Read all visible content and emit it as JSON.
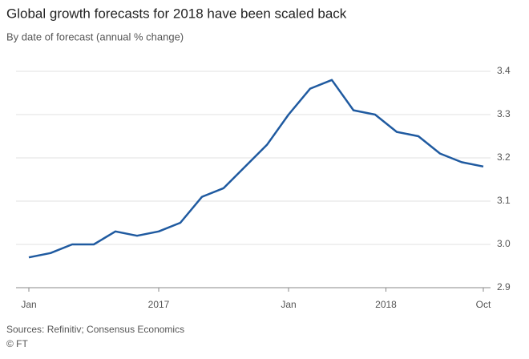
{
  "chart_data": {
    "type": "line",
    "title": "Global growth forecasts for 2018 have been scaled back",
    "subtitle": "By date of forecast (annual % change)",
    "source": "Sources: Refinitiv; Consensus Economics",
    "credit": "© FT",
    "categories": [
      "Jan",
      null,
      null,
      null,
      null,
      null,
      null,
      null,
      null,
      null,
      null,
      null,
      "Jan",
      null,
      null,
      null,
      null,
      null,
      null,
      null,
      null,
      "Oct"
    ],
    "year_labels": [
      "2017",
      "2018"
    ],
    "series": [
      {
        "name": "Global growth forecast for 2018",
        "color": "#1f5aa0",
        "values": [
          2.97,
          2.98,
          3.0,
          3.0,
          3.03,
          3.02,
          3.03,
          3.05,
          3.11,
          3.13,
          3.18,
          3.23,
          3.3,
          3.36,
          3.38,
          3.31,
          3.3,
          3.26,
          3.25,
          3.21,
          3.19,
          3.18
        ]
      }
    ],
    "ylim": [
      2.9,
      3.4
    ],
    "yticks": [
      2.9,
      {
        "value": 3,
        "label": "3.0"
      },
      3.1,
      3.2,
      3.3,
      3.4
    ],
    "grid": true
  }
}
